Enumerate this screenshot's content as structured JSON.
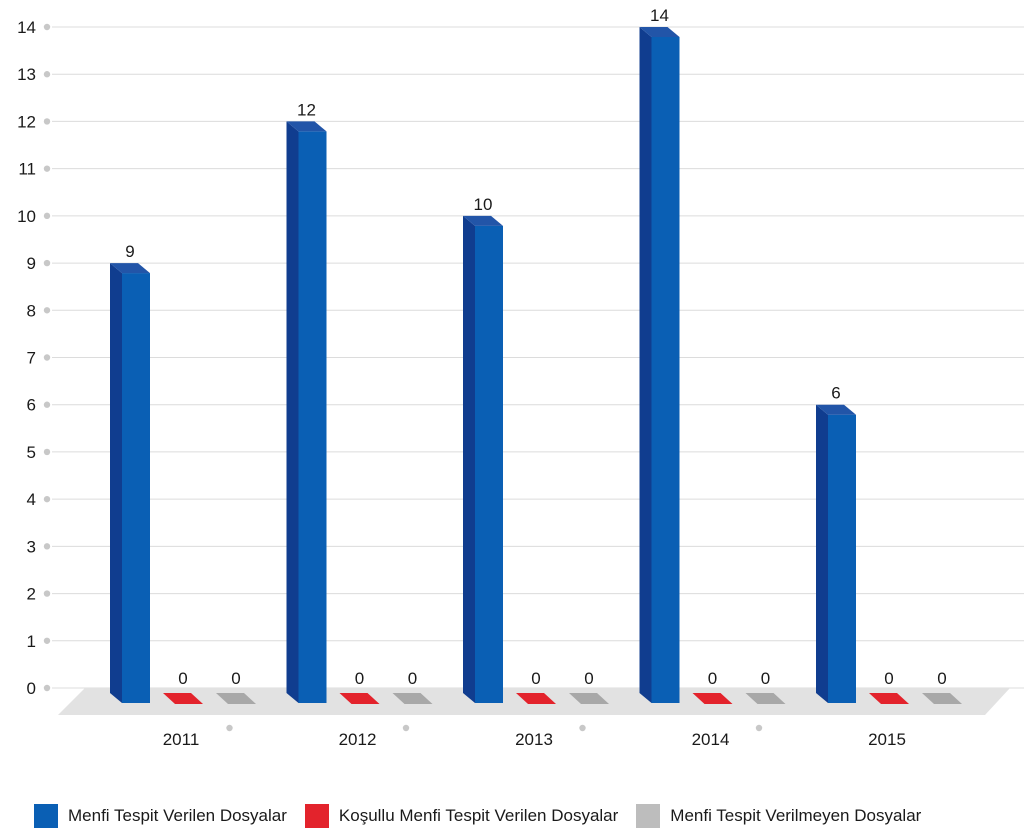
{
  "chart_data": {
    "type": "bar",
    "categories": [
      "2011",
      "2012",
      "2013",
      "2014",
      "2015"
    ],
    "series": [
      {
        "name": "Menfi Tespit Verilen Dosyalar",
        "values": [
          9,
          12,
          10,
          14,
          6
        ],
        "color": "#0a5fb4"
      },
      {
        "name": "Koşullu Menfi Tespit Verilen Dosyalar",
        "values": [
          0,
          0,
          0,
          0,
          0
        ],
        "color": "#e3232c"
      },
      {
        "name": "Menfi Tespit Verilmeyen Dosyalar",
        "values": [
          0,
          0,
          0,
          0,
          0
        ],
        "color": "#a8a8a8"
      }
    ],
    "yticks": [
      "0",
      "1",
      "2",
      "3",
      "4",
      "5",
      "6",
      "7",
      "8",
      "9",
      "10",
      "11",
      "12",
      "13",
      "14"
    ],
    "ylim": [
      0,
      14
    ],
    "grid": true,
    "legend_position": "bottom",
    "style": "3d-bar"
  }
}
